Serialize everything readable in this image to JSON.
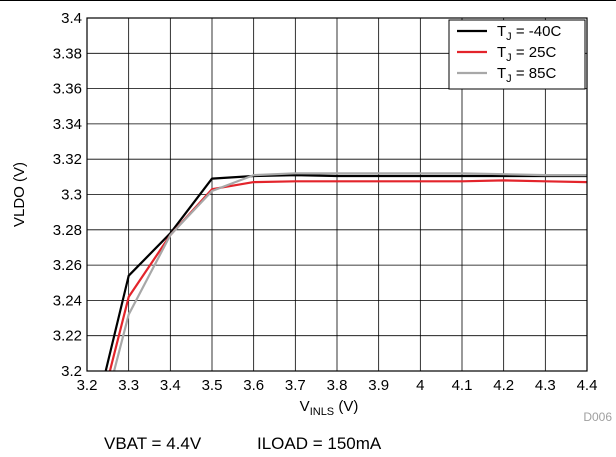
{
  "chart_data": {
    "type": "line",
    "xlabel": {
      "main": "V",
      "sub": "INLS",
      "suffix": " (V)"
    },
    "ylabel": "VLDO (V)",
    "xlim": [
      3.2,
      4.4
    ],
    "ylim": [
      3.2,
      3.4
    ],
    "x_ticks": [
      3.2,
      3.3,
      3.4,
      3.5,
      3.6,
      3.7,
      3.8,
      3.9,
      4,
      4.1,
      4.2,
      4.3,
      4.4
    ],
    "x_tick_labels": [
      "3.2",
      "3.3",
      "3.4",
      "3.5",
      "3.6",
      "3.7",
      "3.8",
      "3.9",
      "4",
      "4.1",
      "4.2",
      "4.3",
      "4.4"
    ],
    "y_ticks": [
      3.2,
      3.22,
      3.24,
      3.26,
      3.28,
      3.3,
      3.32,
      3.34,
      3.36,
      3.38,
      3.4
    ],
    "y_tick_labels": [
      "3.2",
      "3.22",
      "3.24",
      "3.26",
      "3.28",
      "3.3",
      "3.32",
      "3.34",
      "3.36",
      "3.38",
      "3.4"
    ],
    "grid": true,
    "legend_position": "top-right",
    "series": [
      {
        "name": "T_J = -40C",
        "legend": {
          "main": "T",
          "sub": "J",
          "suffix": " = -40C"
        },
        "color": "#000000",
        "x": [
          3.245,
          3.3,
          3.4,
          3.5,
          3.6,
          3.7,
          3.8,
          3.9,
          4.0,
          4.1,
          4.2,
          4.3,
          4.4
        ],
        "y": [
          3.2,
          3.254,
          3.278,
          3.309,
          3.3105,
          3.311,
          3.3105,
          3.3105,
          3.3105,
          3.3105,
          3.3105,
          3.3105,
          3.3105
        ]
      },
      {
        "name": "T_J = 25C",
        "legend": {
          "main": "T",
          "sub": "J",
          "suffix": " = 25C"
        },
        "color": "#e3242b",
        "x": [
          3.255,
          3.3,
          3.4,
          3.5,
          3.6,
          3.7,
          3.8,
          3.9,
          4.0,
          4.1,
          4.2,
          4.3,
          4.4
        ],
        "y": [
          3.2,
          3.242,
          3.277,
          3.303,
          3.307,
          3.3075,
          3.3075,
          3.3075,
          3.3075,
          3.3075,
          3.308,
          3.3075,
          3.307
        ]
      },
      {
        "name": "T_J = 85C",
        "legend": {
          "main": "T",
          "sub": "J",
          "suffix": " = 85C"
        },
        "color": "#a8a8a8",
        "x": [
          3.265,
          3.3,
          3.4,
          3.5,
          3.6,
          3.7,
          3.8,
          3.9,
          4.0,
          4.1,
          4.2,
          4.3,
          4.4
        ],
        "y": [
          3.2,
          3.232,
          3.277,
          3.302,
          3.311,
          3.312,
          3.312,
          3.312,
          3.312,
          3.312,
          3.3115,
          3.311,
          3.311
        ]
      }
    ],
    "figure_id": "D006"
  },
  "caption": {
    "vbat": "VBAT = 4.4V",
    "iload": "ILOAD = 150mA"
  }
}
